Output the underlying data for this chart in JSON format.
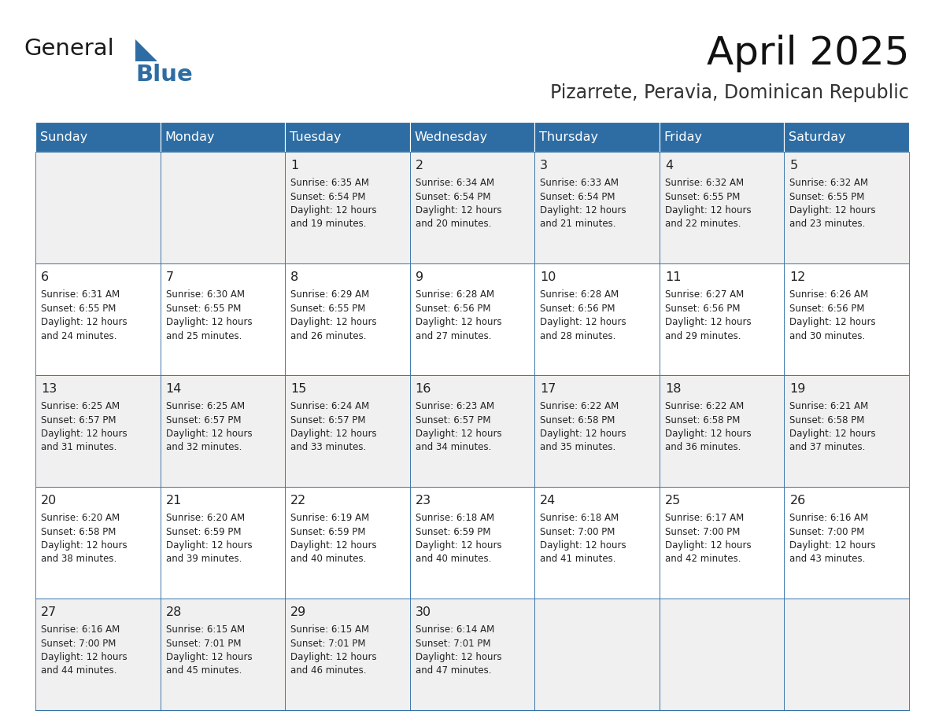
{
  "title": "April 2025",
  "subtitle": "Pizarrete, Peravia, Dominican Republic",
  "weekdays": [
    "Sunday",
    "Monday",
    "Tuesday",
    "Wednesday",
    "Thursday",
    "Friday",
    "Saturday"
  ],
  "header_color": "#2E6DA4",
  "header_text_color": "#FFFFFF",
  "cell_border_color": "#2E6DA4",
  "row_bg_odd": "#F0F0F0",
  "row_bg_even": "#FFFFFF",
  "text_color": "#222222",
  "logo_general_color": "#1a1a1a",
  "logo_blue_color": "#2E6DA4",
  "days": [
    {
      "day": null,
      "sunrise": null,
      "sunset": null,
      "daylight_line1": null,
      "daylight_line2": null
    },
    {
      "day": null,
      "sunrise": null,
      "sunset": null,
      "daylight_line1": null,
      "daylight_line2": null
    },
    {
      "day": 1,
      "sunrise": "Sunrise: 6:35 AM",
      "sunset": "Sunset: 6:54 PM",
      "daylight_line1": "Daylight: 12 hours",
      "daylight_line2": "and 19 minutes."
    },
    {
      "day": 2,
      "sunrise": "Sunrise: 6:34 AM",
      "sunset": "Sunset: 6:54 PM",
      "daylight_line1": "Daylight: 12 hours",
      "daylight_line2": "and 20 minutes."
    },
    {
      "day": 3,
      "sunrise": "Sunrise: 6:33 AM",
      "sunset": "Sunset: 6:54 PM",
      "daylight_line1": "Daylight: 12 hours",
      "daylight_line2": "and 21 minutes."
    },
    {
      "day": 4,
      "sunrise": "Sunrise: 6:32 AM",
      "sunset": "Sunset: 6:55 PM",
      "daylight_line1": "Daylight: 12 hours",
      "daylight_line2": "and 22 minutes."
    },
    {
      "day": 5,
      "sunrise": "Sunrise: 6:32 AM",
      "sunset": "Sunset: 6:55 PM",
      "daylight_line1": "Daylight: 12 hours",
      "daylight_line2": "and 23 minutes."
    },
    {
      "day": 6,
      "sunrise": "Sunrise: 6:31 AM",
      "sunset": "Sunset: 6:55 PM",
      "daylight_line1": "Daylight: 12 hours",
      "daylight_line2": "and 24 minutes."
    },
    {
      "day": 7,
      "sunrise": "Sunrise: 6:30 AM",
      "sunset": "Sunset: 6:55 PM",
      "daylight_line1": "Daylight: 12 hours",
      "daylight_line2": "and 25 minutes."
    },
    {
      "day": 8,
      "sunrise": "Sunrise: 6:29 AM",
      "sunset": "Sunset: 6:55 PM",
      "daylight_line1": "Daylight: 12 hours",
      "daylight_line2": "and 26 minutes."
    },
    {
      "day": 9,
      "sunrise": "Sunrise: 6:28 AM",
      "sunset": "Sunset: 6:56 PM",
      "daylight_line1": "Daylight: 12 hours",
      "daylight_line2": "and 27 minutes."
    },
    {
      "day": 10,
      "sunrise": "Sunrise: 6:28 AM",
      "sunset": "Sunset: 6:56 PM",
      "daylight_line1": "Daylight: 12 hours",
      "daylight_line2": "and 28 minutes."
    },
    {
      "day": 11,
      "sunrise": "Sunrise: 6:27 AM",
      "sunset": "Sunset: 6:56 PM",
      "daylight_line1": "Daylight: 12 hours",
      "daylight_line2": "and 29 minutes."
    },
    {
      "day": 12,
      "sunrise": "Sunrise: 6:26 AM",
      "sunset": "Sunset: 6:56 PM",
      "daylight_line1": "Daylight: 12 hours",
      "daylight_line2": "and 30 minutes."
    },
    {
      "day": 13,
      "sunrise": "Sunrise: 6:25 AM",
      "sunset": "Sunset: 6:57 PM",
      "daylight_line1": "Daylight: 12 hours",
      "daylight_line2": "and 31 minutes."
    },
    {
      "day": 14,
      "sunrise": "Sunrise: 6:25 AM",
      "sunset": "Sunset: 6:57 PM",
      "daylight_line1": "Daylight: 12 hours",
      "daylight_line2": "and 32 minutes."
    },
    {
      "day": 15,
      "sunrise": "Sunrise: 6:24 AM",
      "sunset": "Sunset: 6:57 PM",
      "daylight_line1": "Daylight: 12 hours",
      "daylight_line2": "and 33 minutes."
    },
    {
      "day": 16,
      "sunrise": "Sunrise: 6:23 AM",
      "sunset": "Sunset: 6:57 PM",
      "daylight_line1": "Daylight: 12 hours",
      "daylight_line2": "and 34 minutes."
    },
    {
      "day": 17,
      "sunrise": "Sunrise: 6:22 AM",
      "sunset": "Sunset: 6:58 PM",
      "daylight_line1": "Daylight: 12 hours",
      "daylight_line2": "and 35 minutes."
    },
    {
      "day": 18,
      "sunrise": "Sunrise: 6:22 AM",
      "sunset": "Sunset: 6:58 PM",
      "daylight_line1": "Daylight: 12 hours",
      "daylight_line2": "and 36 minutes."
    },
    {
      "day": 19,
      "sunrise": "Sunrise: 6:21 AM",
      "sunset": "Sunset: 6:58 PM",
      "daylight_line1": "Daylight: 12 hours",
      "daylight_line2": "and 37 minutes."
    },
    {
      "day": 20,
      "sunrise": "Sunrise: 6:20 AM",
      "sunset": "Sunset: 6:58 PM",
      "daylight_line1": "Daylight: 12 hours",
      "daylight_line2": "and 38 minutes."
    },
    {
      "day": 21,
      "sunrise": "Sunrise: 6:20 AM",
      "sunset": "Sunset: 6:59 PM",
      "daylight_line1": "Daylight: 12 hours",
      "daylight_line2": "and 39 minutes."
    },
    {
      "day": 22,
      "sunrise": "Sunrise: 6:19 AM",
      "sunset": "Sunset: 6:59 PM",
      "daylight_line1": "Daylight: 12 hours",
      "daylight_line2": "and 40 minutes."
    },
    {
      "day": 23,
      "sunrise": "Sunrise: 6:18 AM",
      "sunset": "Sunset: 6:59 PM",
      "daylight_line1": "Daylight: 12 hours",
      "daylight_line2": "and 40 minutes."
    },
    {
      "day": 24,
      "sunrise": "Sunrise: 6:18 AM",
      "sunset": "Sunset: 7:00 PM",
      "daylight_line1": "Daylight: 12 hours",
      "daylight_line2": "and 41 minutes."
    },
    {
      "day": 25,
      "sunrise": "Sunrise: 6:17 AM",
      "sunset": "Sunset: 7:00 PM",
      "daylight_line1": "Daylight: 12 hours",
      "daylight_line2": "and 42 minutes."
    },
    {
      "day": 26,
      "sunrise": "Sunrise: 6:16 AM",
      "sunset": "Sunset: 7:00 PM",
      "daylight_line1": "Daylight: 12 hours",
      "daylight_line2": "and 43 minutes."
    },
    {
      "day": 27,
      "sunrise": "Sunrise: 6:16 AM",
      "sunset": "Sunset: 7:00 PM",
      "daylight_line1": "Daylight: 12 hours",
      "daylight_line2": "and 44 minutes."
    },
    {
      "day": 28,
      "sunrise": "Sunrise: 6:15 AM",
      "sunset": "Sunset: 7:01 PM",
      "daylight_line1": "Daylight: 12 hours",
      "daylight_line2": "and 45 minutes."
    },
    {
      "day": 29,
      "sunrise": "Sunrise: 6:15 AM",
      "sunset": "Sunset: 7:01 PM",
      "daylight_line1": "Daylight: 12 hours",
      "daylight_line2": "and 46 minutes."
    },
    {
      "day": 30,
      "sunrise": "Sunrise: 6:14 AM",
      "sunset": "Sunset: 7:01 PM",
      "daylight_line1": "Daylight: 12 hours",
      "daylight_line2": "and 47 minutes."
    },
    {
      "day": null,
      "sunrise": null,
      "sunset": null,
      "daylight_line1": null,
      "daylight_line2": null
    },
    {
      "day": null,
      "sunrise": null,
      "sunset": null,
      "daylight_line1": null,
      "daylight_line2": null
    },
    {
      "day": null,
      "sunrise": null,
      "sunset": null,
      "daylight_line1": null,
      "daylight_line2": null
    }
  ],
  "num_rows": 5,
  "fig_width": 11.88,
  "fig_height": 9.18,
  "dpi": 100
}
